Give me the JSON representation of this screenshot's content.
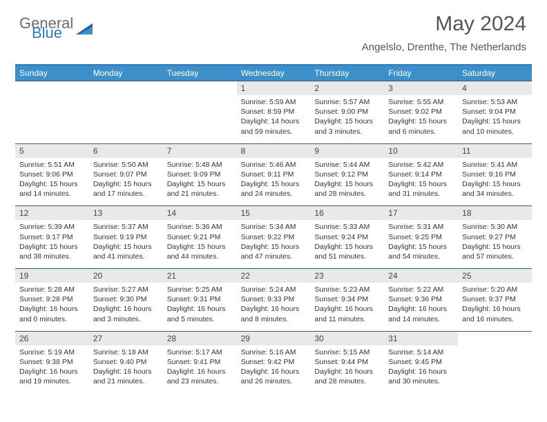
{
  "logo": {
    "general": "General",
    "blue": "Blue"
  },
  "title": "May 2024",
  "location": "Angelslo, Drenthe, The Netherlands",
  "colors": {
    "header_bar": "#3d8fc9",
    "top_border": "#2a7ab8",
    "week_sep": "#345b7a",
    "daynum_bg": "#e9e9e9",
    "text": "#333333"
  },
  "dow": [
    "Sunday",
    "Monday",
    "Tuesday",
    "Wednesday",
    "Thursday",
    "Friday",
    "Saturday"
  ],
  "weeks": [
    [
      null,
      null,
      null,
      {
        "n": "1",
        "sr": "5:59 AM",
        "ss": "8:59 PM",
        "dl": "14 hours and 59 minutes."
      },
      {
        "n": "2",
        "sr": "5:57 AM",
        "ss": "9:00 PM",
        "dl": "15 hours and 3 minutes."
      },
      {
        "n": "3",
        "sr": "5:55 AM",
        "ss": "9:02 PM",
        "dl": "15 hours and 6 minutes."
      },
      {
        "n": "4",
        "sr": "5:53 AM",
        "ss": "9:04 PM",
        "dl": "15 hours and 10 minutes."
      }
    ],
    [
      {
        "n": "5",
        "sr": "5:51 AM",
        "ss": "9:06 PM",
        "dl": "15 hours and 14 minutes."
      },
      {
        "n": "6",
        "sr": "5:50 AM",
        "ss": "9:07 PM",
        "dl": "15 hours and 17 minutes."
      },
      {
        "n": "7",
        "sr": "5:48 AM",
        "ss": "9:09 PM",
        "dl": "15 hours and 21 minutes."
      },
      {
        "n": "8",
        "sr": "5:46 AM",
        "ss": "9:11 PM",
        "dl": "15 hours and 24 minutes."
      },
      {
        "n": "9",
        "sr": "5:44 AM",
        "ss": "9:12 PM",
        "dl": "15 hours and 28 minutes."
      },
      {
        "n": "10",
        "sr": "5:42 AM",
        "ss": "9:14 PM",
        "dl": "15 hours and 31 minutes."
      },
      {
        "n": "11",
        "sr": "5:41 AM",
        "ss": "9:16 PM",
        "dl": "15 hours and 34 minutes."
      }
    ],
    [
      {
        "n": "12",
        "sr": "5:39 AM",
        "ss": "9:17 PM",
        "dl": "15 hours and 38 minutes."
      },
      {
        "n": "13",
        "sr": "5:37 AM",
        "ss": "9:19 PM",
        "dl": "15 hours and 41 minutes."
      },
      {
        "n": "14",
        "sr": "5:36 AM",
        "ss": "9:21 PM",
        "dl": "15 hours and 44 minutes."
      },
      {
        "n": "15",
        "sr": "5:34 AM",
        "ss": "9:22 PM",
        "dl": "15 hours and 47 minutes."
      },
      {
        "n": "16",
        "sr": "5:33 AM",
        "ss": "9:24 PM",
        "dl": "15 hours and 51 minutes."
      },
      {
        "n": "17",
        "sr": "5:31 AM",
        "ss": "9:25 PM",
        "dl": "15 hours and 54 minutes."
      },
      {
        "n": "18",
        "sr": "5:30 AM",
        "ss": "9:27 PM",
        "dl": "15 hours and 57 minutes."
      }
    ],
    [
      {
        "n": "19",
        "sr": "5:28 AM",
        "ss": "9:28 PM",
        "dl": "16 hours and 0 minutes."
      },
      {
        "n": "20",
        "sr": "5:27 AM",
        "ss": "9:30 PM",
        "dl": "16 hours and 3 minutes."
      },
      {
        "n": "21",
        "sr": "5:25 AM",
        "ss": "9:31 PM",
        "dl": "16 hours and 5 minutes."
      },
      {
        "n": "22",
        "sr": "5:24 AM",
        "ss": "9:33 PM",
        "dl": "16 hours and 8 minutes."
      },
      {
        "n": "23",
        "sr": "5:23 AM",
        "ss": "9:34 PM",
        "dl": "16 hours and 11 minutes."
      },
      {
        "n": "24",
        "sr": "5:22 AM",
        "ss": "9:36 PM",
        "dl": "16 hours and 14 minutes."
      },
      {
        "n": "25",
        "sr": "5:20 AM",
        "ss": "9:37 PM",
        "dl": "16 hours and 16 minutes."
      }
    ],
    [
      {
        "n": "26",
        "sr": "5:19 AM",
        "ss": "9:38 PM",
        "dl": "16 hours and 19 minutes."
      },
      {
        "n": "27",
        "sr": "5:18 AM",
        "ss": "9:40 PM",
        "dl": "16 hours and 21 minutes."
      },
      {
        "n": "28",
        "sr": "5:17 AM",
        "ss": "9:41 PM",
        "dl": "16 hours and 23 minutes."
      },
      {
        "n": "29",
        "sr": "5:16 AM",
        "ss": "9:42 PM",
        "dl": "16 hours and 26 minutes."
      },
      {
        "n": "30",
        "sr": "5:15 AM",
        "ss": "9:44 PM",
        "dl": "16 hours and 28 minutes."
      },
      {
        "n": "31",
        "sr": "5:14 AM",
        "ss": "9:45 PM",
        "dl": "16 hours and 30 minutes."
      },
      null
    ]
  ]
}
